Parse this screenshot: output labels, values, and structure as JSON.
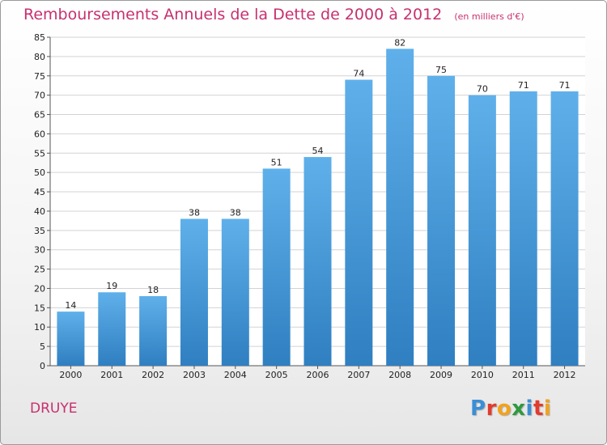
{
  "header": {
    "title": "Remboursements Annuels de la Dette de 2000 à 2012",
    "unit": "(en milliers d'€)"
  },
  "footer": {
    "commune": "DRUYE",
    "logo_text": "Proxiti",
    "logo_colors": [
      "#3a8fd6",
      "#e23b2e",
      "#f2a31b",
      "#2e9a3e",
      "#3a8fd6",
      "#e23b2e",
      "#f2a31b"
    ]
  },
  "colors": {
    "title": "#c7306f",
    "bar_top": "#5fb0ea",
    "bar_bottom": "#2f7fc1",
    "grid": "#d3d3d3"
  },
  "chart_data": {
    "type": "bar",
    "title": "Remboursements Annuels de la Dette de 2000 à 2012",
    "subtitle": "(en milliers d'€)",
    "xlabel": "",
    "ylabel": "",
    "categories": [
      "2000",
      "2001",
      "2002",
      "2003",
      "2004",
      "2005",
      "2006",
      "2007",
      "2008",
      "2009",
      "2010",
      "2011",
      "2012"
    ],
    "values": [
      14,
      19,
      18,
      38,
      38,
      51,
      54,
      74,
      82,
      75,
      70,
      71,
      71
    ],
    "ylim": [
      0,
      85
    ],
    "yticks": [
      0,
      5,
      10,
      15,
      20,
      25,
      30,
      35,
      40,
      45,
      50,
      55,
      60,
      65,
      70,
      75,
      80,
      85
    ],
    "grid": true,
    "data_labels": true
  }
}
